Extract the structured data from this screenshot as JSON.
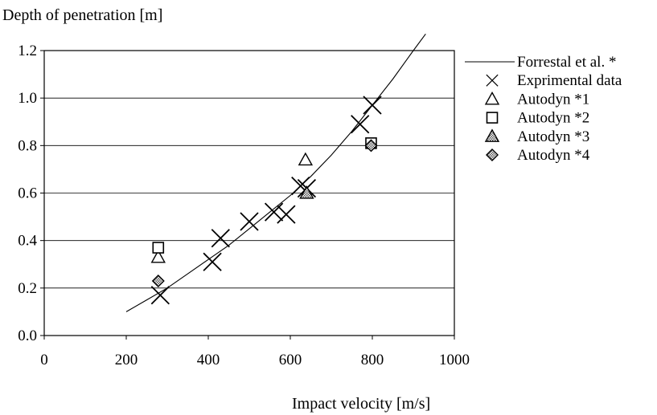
{
  "chart_data": {
    "type": "scatter",
    "ylabel": "Depth of penetration [m]",
    "xlabel": "Impact velocity [m/s]",
    "xlim": [
      0,
      1000
    ],
    "ylim": [
      0.0,
      1.2
    ],
    "x_ticks": [
      "0",
      "200",
      "400",
      "600",
      "800",
      "1000"
    ],
    "y_ticks": [
      "0.0",
      "0.2",
      "0.4",
      "0.6",
      "0.8",
      "1.0",
      "1.2"
    ],
    "grid": "horizontal",
    "legend_position": "right",
    "series": [
      {
        "name": "Forrestal et al. *",
        "marker": "line",
        "points": [
          [
            200,
            0.1
          ],
          [
            250,
            0.15
          ],
          [
            300,
            0.2
          ],
          [
            350,
            0.26
          ],
          [
            400,
            0.32
          ],
          [
            450,
            0.38
          ],
          [
            500,
            0.45
          ],
          [
            550,
            0.52
          ],
          [
            600,
            0.59
          ],
          [
            650,
            0.67
          ],
          [
            700,
            0.76
          ],
          [
            750,
            0.86
          ],
          [
            800,
            0.97
          ],
          [
            850,
            1.08
          ],
          [
            900,
            1.2
          ],
          [
            930,
            1.27
          ]
        ]
      },
      {
        "name": "Exprimental data",
        "marker": "x",
        "points": [
          [
            283,
            0.17
          ],
          [
            410,
            0.31
          ],
          [
            430,
            0.41
          ],
          [
            500,
            0.48
          ],
          [
            560,
            0.52
          ],
          [
            590,
            0.51
          ],
          [
            625,
            0.63
          ],
          [
            640,
            0.62
          ],
          [
            770,
            0.89
          ],
          [
            800,
            0.97
          ]
        ]
      },
      {
        "name": "Autodyn *1",
        "marker": "triangle-open",
        "points": [
          [
            278,
            0.33
          ],
          [
            637,
            0.74
          ]
        ]
      },
      {
        "name": "Autodyn *2",
        "marker": "square-open",
        "points": [
          [
            278,
            0.37
          ],
          [
            797,
            0.81
          ]
        ]
      },
      {
        "name": "Autodyn *3",
        "marker": "triangle-shaded",
        "points": [
          [
            640,
            0.6
          ]
        ]
      },
      {
        "name": "Autodyn *4",
        "marker": "diamond-shaded",
        "points": [
          [
            278,
            0.23
          ],
          [
            797,
            0.8
          ]
        ]
      }
    ]
  }
}
